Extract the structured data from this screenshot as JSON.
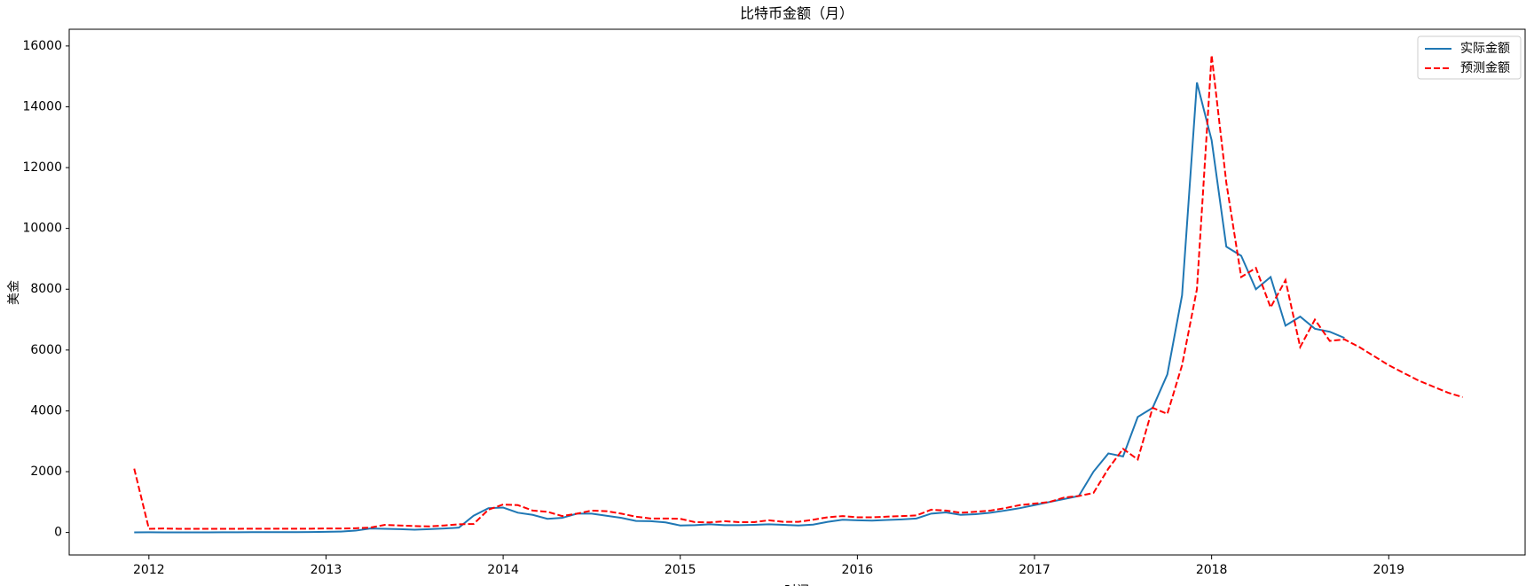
{
  "chart_data": {
    "type": "line",
    "title": "比特币金额（月）",
    "x_label": "时间",
    "y_label": "美金",
    "x": [
      2011.917,
      2012.0,
      2012.083,
      2012.167,
      2012.25,
      2012.333,
      2012.417,
      2012.5,
      2012.583,
      2012.667,
      2012.75,
      2012.833,
      2012.917,
      2013.0,
      2013.083,
      2013.167,
      2013.25,
      2013.333,
      2013.417,
      2013.5,
      2013.583,
      2013.667,
      2013.75,
      2013.833,
      2013.917,
      2014.0,
      2014.083,
      2014.167,
      2014.25,
      2014.333,
      2014.417,
      2014.5,
      2014.583,
      2014.667,
      2014.75,
      2014.833,
      2014.917,
      2015.0,
      2015.083,
      2015.167,
      2015.25,
      2015.333,
      2015.417,
      2015.5,
      2015.583,
      2015.667,
      2015.75,
      2015.833,
      2015.917,
      2016.0,
      2016.083,
      2016.167,
      2016.25,
      2016.333,
      2016.417,
      2016.5,
      2016.583,
      2016.667,
      2016.75,
      2016.833,
      2016.917,
      2017.0,
      2017.083,
      2017.167,
      2017.25,
      2017.333,
      2017.417,
      2017.5,
      2017.583,
      2017.667,
      2017.75,
      2017.833,
      2017.917,
      2018.0,
      2018.083,
      2018.167,
      2018.25,
      2018.333,
      2018.417,
      2018.5,
      2018.583,
      2018.667,
      2018.75,
      2018.833,
      2018.917,
      2019.0,
      2019.083,
      2019.167,
      2019.25,
      2019.333,
      2019.417
    ],
    "series": [
      {
        "name": "实际金额",
        "color": "#1f77b4",
        "style": "solid",
        "values": [
          5,
          6,
          5,
          5,
          5,
          5,
          6,
          8,
          10,
          11,
          12,
          11,
          13,
          20,
          30,
          60,
          130,
          120,
          110,
          90,
          110,
          130,
          160,
          550,
          800,
          820,
          650,
          580,
          450,
          480,
          620,
          620,
          550,
          480,
          380,
          370,
          330,
          230,
          240,
          270,
          240,
          240,
          250,
          270,
          250,
          230,
          260,
          350,
          420,
          400,
          390,
          410,
          430,
          460,
          620,
          660,
          580,
          600,
          650,
          720,
          800,
          900,
          1000,
          1100,
          1200,
          2000,
          2600,
          2500,
          3800,
          4100,
          5200,
          7800,
          14800,
          12900,
          9400,
          9100,
          8000,
          8400,
          6800,
          7100,
          6700,
          6600,
          6400,
          null,
          null,
          null,
          null,
          null,
          null,
          null,
          null
        ]
      },
      {
        "name": "预测金额",
        "color": "#ff0000",
        "style": "dashed",
        "values": [
          2100,
          120,
          130,
          120,
          120,
          120,
          120,
          120,
          125,
          125,
          125,
          125,
          125,
          130,
          130,
          140,
          160,
          250,
          230,
          210,
          200,
          230,
          270,
          280,
          750,
          920,
          900,
          720,
          680,
          540,
          620,
          720,
          700,
          620,
          520,
          460,
          460,
          450,
          340,
          330,
          370,
          340,
          340,
          400,
          350,
          350,
          420,
          500,
          540,
          500,
          500,
          520,
          540,
          560,
          750,
          720,
          650,
          680,
          720,
          800,
          900,
          950,
          1000,
          1150,
          1200,
          1300,
          2100,
          2750,
          2400,
          4100,
          3900,
          5500,
          8000,
          15700,
          11500,
          8400,
          8700,
          7400,
          8300,
          6100,
          7000,
          6300,
          6350,
          6100,
          5800,
          5500,
          5250,
          5000,
          4800,
          4600,
          4450
        ]
      }
    ],
    "xlim": [
      2011.55,
      2019.77
    ],
    "xticks": [
      2012,
      2013,
      2014,
      2015,
      2016,
      2017,
      2018,
      2019
    ],
    "ylim": [
      -740,
      16550
    ],
    "yticks": [
      0,
      2000,
      4000,
      6000,
      8000,
      10000,
      12000,
      14000,
      16000
    ],
    "grid": false,
    "legend": "upper right"
  }
}
